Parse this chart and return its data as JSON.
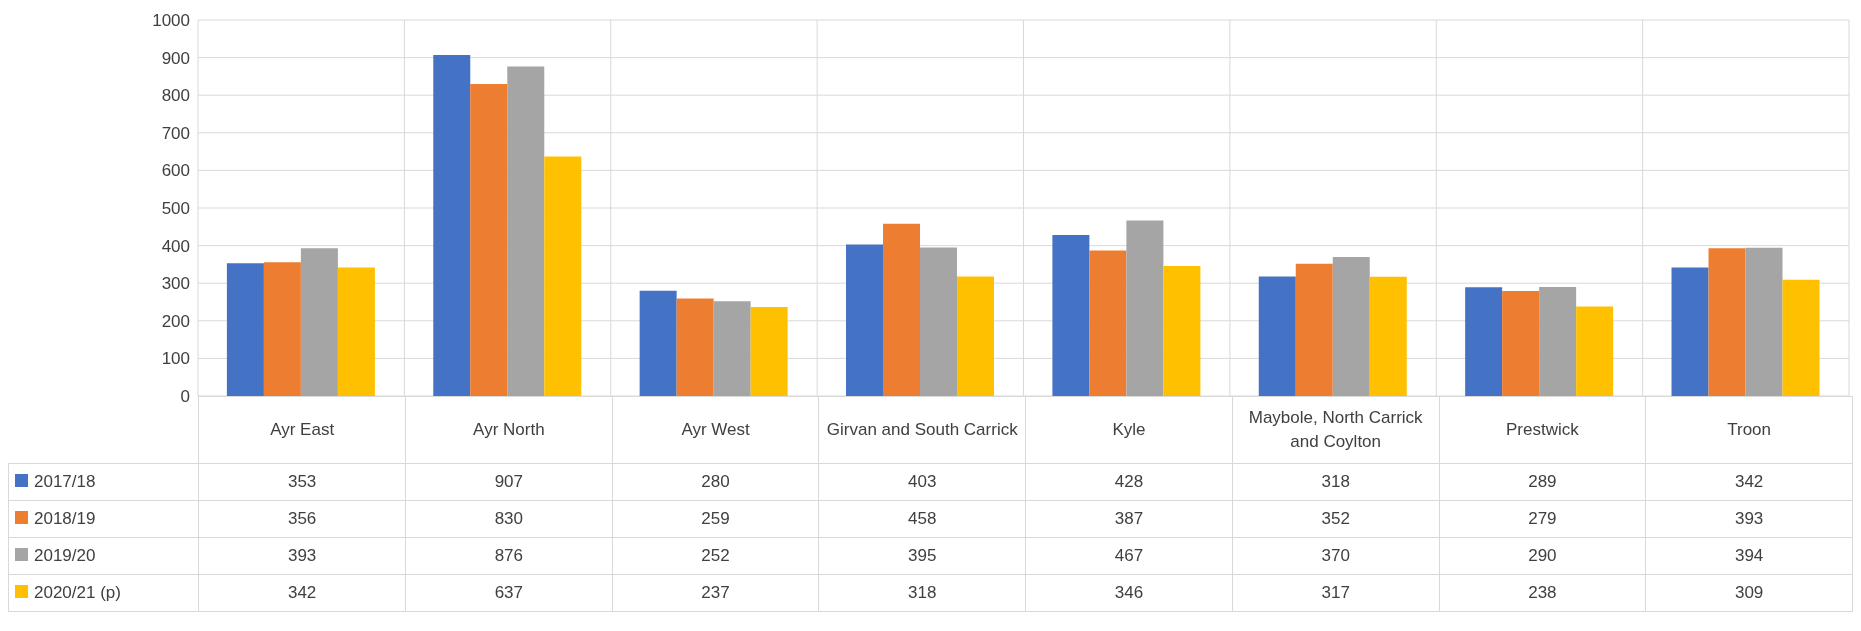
{
  "chart_data": {
    "type": "bar",
    "categories": [
      "Ayr East",
      "Ayr North",
      "Ayr West",
      "Girvan and South Carrick",
      "Kyle",
      "Maybole, North Carrick and Coylton",
      "Prestwick",
      "Troon"
    ],
    "series": [
      {
        "name": "2017/18",
        "color": "#4472c4",
        "values": [
          353,
          907,
          280,
          403,
          428,
          318,
          289,
          342
        ]
      },
      {
        "name": "2018/19",
        "color": "#ed7d31",
        "values": [
          356,
          830,
          259,
          458,
          387,
          352,
          279,
          393
        ]
      },
      {
        "name": "2019/20",
        "color": "#a5a5a5",
        "values": [
          393,
          876,
          252,
          395,
          467,
          370,
          290,
          394
        ]
      },
      {
        "name": "2020/21 (p)",
        "color": "#ffc000",
        "values": [
          342,
          637,
          237,
          318,
          346,
          317,
          238,
          309
        ]
      }
    ],
    "ylim": [
      0,
      1000
    ],
    "yticks": [
      0,
      100,
      200,
      300,
      400,
      500,
      600,
      700,
      800,
      900,
      1000
    ],
    "grid": true,
    "legend": "bottom",
    "data_labels": true
  }
}
